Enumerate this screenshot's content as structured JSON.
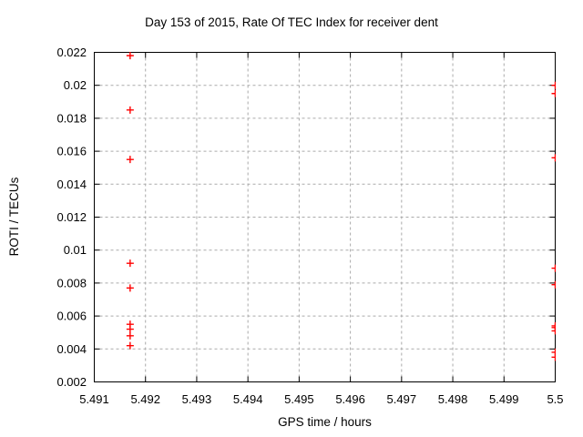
{
  "colors": {
    "background": "#ffffff",
    "axis": "#000000",
    "grid": "#aaaaaa",
    "marker": "#ff0000",
    "text": "#000000"
  },
  "chart_data": {
    "type": "scatter",
    "title": "Day 153 of 2015, Rate Of TEC Index for receiver dent",
    "xlabel": "GPS time / hours",
    "ylabel": "ROTI / TECUs",
    "xlim": [
      5.491,
      5.5
    ],
    "ylim": [
      0.002,
      0.022
    ],
    "x_ticks": [
      5.491,
      5.492,
      5.493,
      5.494,
      5.495,
      5.496,
      5.497,
      5.498,
      5.499,
      5.5
    ],
    "x_tick_labels": [
      "5.491",
      "5.492",
      "5.493",
      "5.494",
      "5.495",
      "5.496",
      "5.497",
      "5.498",
      "5.499",
      "5.5"
    ],
    "y_ticks": [
      0.002,
      0.004,
      0.006,
      0.008,
      0.01,
      0.012,
      0.014,
      0.016,
      0.018,
      0.02,
      0.022
    ],
    "y_tick_labels": [
      "0.002",
      "0.004",
      "0.006",
      "0.008",
      "0.01",
      "0.012",
      "0.014",
      "0.016",
      "0.018",
      "0.02",
      "0.022"
    ],
    "grid": "dashed",
    "legend": "none",
    "marker": "plus",
    "points": [
      {
        "x": 5.4917,
        "y": 0.0218
      },
      {
        "x": 5.4917,
        "y": 0.0185
      },
      {
        "x": 5.4917,
        "y": 0.0155
      },
      {
        "x": 5.4917,
        "y": 0.0092
      },
      {
        "x": 5.4917,
        "y": 0.0077
      },
      {
        "x": 5.4917,
        "y": 0.0055
      },
      {
        "x": 5.4917,
        "y": 0.0052
      },
      {
        "x": 5.4917,
        "y": 0.0048
      },
      {
        "x": 5.4917,
        "y": 0.0042
      },
      {
        "x": 5.5,
        "y": 0.02
      },
      {
        "x": 5.5,
        "y": 0.0195
      },
      {
        "x": 5.5,
        "y": 0.0156
      },
      {
        "x": 5.5,
        "y": 0.0089
      },
      {
        "x": 5.5,
        "y": 0.0079
      },
      {
        "x": 5.5,
        "y": 0.0054
      },
      {
        "x": 5.5,
        "y": 0.0053
      },
      {
        "x": 5.5,
        "y": 0.0051
      },
      {
        "x": 5.5,
        "y": 0.0038
      },
      {
        "x": 5.5,
        "y": 0.0035
      }
    ]
  }
}
